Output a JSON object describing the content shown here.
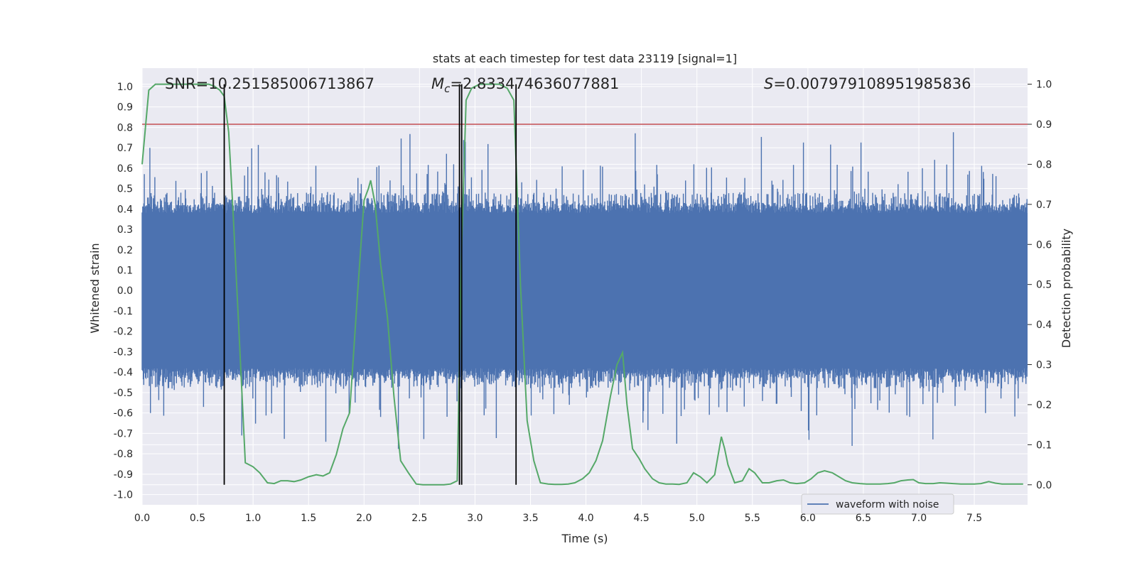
{
  "chart_data": {
    "type": "line",
    "title": "stats at each timestep for test data 23119 [signal=1]",
    "xlabel": "Time (s)",
    "ylabel_left": "Whitened strain",
    "ylabel_right": "Detection probability",
    "xlim": [
      0,
      7.98
    ],
    "ylim_left": [
      -1.05,
      1.09
    ],
    "ylim_right": [
      -0.05,
      1.04
    ],
    "x_ticks": [
      "0.0",
      "0.5",
      "1.0",
      "1.5",
      "2.0",
      "2.5",
      "3.0",
      "3.5",
      "4.0",
      "4.5",
      "5.0",
      "5.5",
      "6.0",
      "6.5",
      "7.0",
      "7.5"
    ],
    "y_left_ticks": [
      "1.0",
      "0.9",
      "0.8",
      "0.7",
      "0.6",
      "0.5",
      "0.4",
      "0.3",
      "0.2",
      "0.1",
      "0.0",
      "-0.1",
      "-0.2",
      "-0.3",
      "-0.4",
      "-0.5",
      "-0.6",
      "-0.7",
      "-0.8",
      "-0.9",
      "-1.0"
    ],
    "y_right_ticks": [
      "1.0",
      "0.9",
      "0.8",
      "0.7",
      "0.6",
      "0.5",
      "0.4",
      "0.3",
      "0.2",
      "0.1",
      "0.0"
    ],
    "grid": true,
    "legend_position": "lower-right",
    "annotations": {
      "snr": "SNR=10.251585006713867",
      "mc_symbol": "M",
      "mc_sub": "c",
      "mc_value": "=2.833474636077881",
      "s_symbol": "S",
      "s_value": "=0.007979108951985836"
    },
    "threshold": {
      "value": 0.9,
      "axis": "right",
      "color": "#c44e52"
    },
    "vertical_markers": [
      0.74,
      2.86,
      2.88,
      3.37
    ],
    "marker_bottom": 0.0,
    "marker_top": 1.0,
    "colors": {
      "waveform": "#4c72b0",
      "probability": "#55a868",
      "background": "#eaeaf2",
      "grid": "#ffffff",
      "markers": "#000000"
    },
    "series": [
      {
        "name": "waveform with noise",
        "axis": "left",
        "style": "dense-noise",
        "core_amplitude": 0.38,
        "typical_peak_amplitude": 0.62,
        "max_peak": 0.83
      },
      {
        "axis": "right",
        "x": [
          0.0,
          0.06,
          0.12,
          0.2,
          0.3,
          0.4,
          0.5,
          0.6,
          0.65,
          0.7,
          0.74,
          0.78,
          0.82,
          0.87,
          0.93,
          1.0,
          1.06,
          1.13,
          1.19,
          1.25,
          1.31,
          1.37,
          1.43,
          1.5,
          1.57,
          1.63,
          1.69,
          1.75,
          1.81,
          1.87,
          1.94,
          2.0,
          2.04,
          2.06,
          2.1,
          2.15,
          2.21,
          2.27,
          2.33,
          2.4,
          2.47,
          2.53,
          2.6,
          2.66,
          2.72,
          2.78,
          2.84,
          2.88,
          2.92,
          2.97,
          3.04,
          3.1,
          3.16,
          3.22,
          3.29,
          3.35,
          3.41,
          3.47,
          3.53,
          3.59,
          3.66,
          3.72,
          3.78,
          3.84,
          3.9,
          3.97,
          4.03,
          4.09,
          4.15,
          4.22,
          4.28,
          4.33,
          4.37,
          4.42,
          4.48,
          4.53,
          4.6,
          4.66,
          4.72,
          4.78,
          4.84,
          4.91,
          4.97,
          5.03,
          5.09,
          5.16,
          5.22,
          5.25,
          5.28,
          5.34,
          5.41,
          5.47,
          5.52,
          5.59,
          5.65,
          5.72,
          5.78,
          5.84,
          5.9,
          5.97,
          6.03,
          6.09,
          6.15,
          6.22,
          6.28,
          6.34,
          6.4,
          6.47,
          6.53,
          6.59,
          6.65,
          6.72,
          6.78,
          6.84,
          6.9,
          6.95,
          7.0,
          7.06,
          7.13,
          7.19,
          7.25,
          7.31,
          7.38,
          7.44,
          7.5,
          7.56,
          7.63,
          7.69,
          7.75,
          7.81,
          7.87,
          7.94
        ],
        "y": [
          0.8,
          0.985,
          1.0,
          1.0,
          1.0,
          1.0,
          1.0,
          1.0,
          0.995,
          0.985,
          0.97,
          0.88,
          0.68,
          0.4,
          0.055,
          0.045,
          0.03,
          0.005,
          0.003,
          0.01,
          0.01,
          0.008,
          0.012,
          0.02,
          0.025,
          0.022,
          0.03,
          0.075,
          0.14,
          0.18,
          0.47,
          0.71,
          0.74,
          0.76,
          0.7,
          0.55,
          0.42,
          0.22,
          0.06,
          0.03,
          0.002,
          0.0,
          0.0,
          0.0,
          0.0,
          0.002,
          0.01,
          0.6,
          0.96,
          0.99,
          1.0,
          1.0,
          1.0,
          1.0,
          0.99,
          0.96,
          0.5,
          0.16,
          0.06,
          0.005,
          0.002,
          0.001,
          0.001,
          0.002,
          0.005,
          0.015,
          0.03,
          0.06,
          0.11,
          0.22,
          0.3,
          0.33,
          0.2,
          0.09,
          0.065,
          0.04,
          0.015,
          0.005,
          0.002,
          0.002,
          0.001,
          0.005,
          0.03,
          0.02,
          0.005,
          0.025,
          0.12,
          0.09,
          0.05,
          0.005,
          0.01,
          0.04,
          0.03,
          0.005,
          0.005,
          0.01,
          0.012,
          0.005,
          0.003,
          0.005,
          0.015,
          0.03,
          0.035,
          0.03,
          0.02,
          0.01,
          0.005,
          0.003,
          0.002,
          0.002,
          0.002,
          0.003,
          0.005,
          0.01,
          0.012,
          0.013,
          0.005,
          0.003,
          0.003,
          0.005,
          0.004,
          0.003,
          0.002,
          0.002,
          0.002,
          0.003,
          0.008,
          0.004,
          0.002,
          0.002,
          0.002,
          0.002
        ]
      }
    ]
  }
}
